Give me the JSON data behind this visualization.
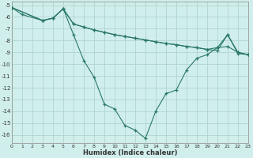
{
  "xlabel": "Humidex (Indice chaleur)",
  "xlim": [
    0,
    23
  ],
  "ylim": [
    -16.7,
    -4.7
  ],
  "yticks": [
    -5,
    -6,
    -7,
    -8,
    -9,
    -10,
    -11,
    -12,
    -13,
    -14,
    -15,
    -16
  ],
  "xticks": [
    0,
    1,
    2,
    3,
    4,
    5,
    6,
    7,
    8,
    9,
    10,
    11,
    12,
    13,
    14,
    15,
    16,
    17,
    18,
    19,
    20,
    21,
    22,
    23
  ],
  "bg_color": "#d0eeec",
  "grid_color": "#b0d4d0",
  "line_color": "#2a7868",
  "line_main_x": [
    0,
    3,
    4,
    5,
    6,
    7,
    8,
    9,
    10,
    11,
    12,
    13,
    14,
    15,
    16,
    17,
    18,
    19,
    20,
    21,
    22,
    23
  ],
  "line_main_y": [
    -5.2,
    -6.3,
    -6.1,
    -5.3,
    -7.5,
    -9.7,
    -11.1,
    -13.4,
    -13.8,
    -15.2,
    -15.6,
    -16.3,
    -14.0,
    -12.5,
    -12.2,
    -10.5,
    -9.5,
    -9.2,
    -8.6,
    -7.5,
    -9.1,
    -9.2
  ],
  "line_flat_x": [
    0,
    1,
    3,
    4,
    5,
    6,
    7,
    8,
    9,
    10,
    11,
    12,
    13,
    14,
    15,
    16,
    17,
    18,
    19,
    20,
    21,
    22,
    23
  ],
  "line_flat_y": [
    -5.2,
    -5.8,
    -6.3,
    -6.1,
    -5.3,
    -6.6,
    -6.85,
    -7.1,
    -7.3,
    -7.5,
    -7.65,
    -7.8,
    -7.95,
    -8.1,
    -8.25,
    -8.35,
    -8.5,
    -8.6,
    -8.75,
    -8.85,
    -7.5,
    -9.0,
    -9.2
  ],
  "line_mid_x": [
    0,
    3,
    4,
    5,
    6,
    7,
    8,
    9,
    10,
    11,
    12,
    13,
    14,
    15,
    16,
    17,
    18,
    19,
    20,
    21,
    22,
    23
  ],
  "line_mid_y": [
    -5.2,
    -6.3,
    -6.1,
    -5.3,
    -6.6,
    -6.85,
    -7.1,
    -7.3,
    -7.5,
    -7.65,
    -7.8,
    -7.95,
    -8.1,
    -8.25,
    -8.35,
    -8.5,
    -8.6,
    -8.75,
    -8.6,
    -8.5,
    -9.0,
    -9.2
  ]
}
